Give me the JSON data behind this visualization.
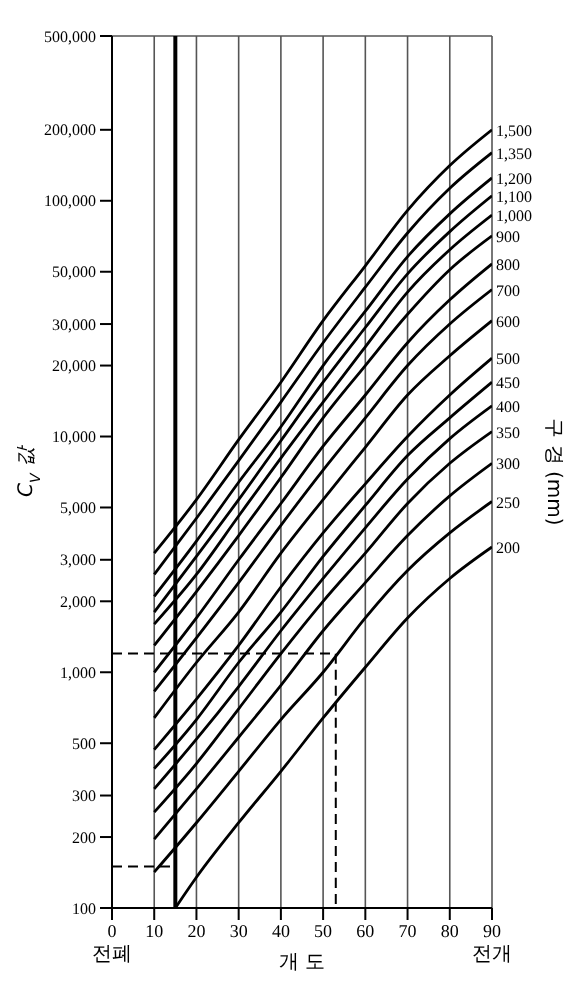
{
  "chart_data": {
    "type": "line",
    "xlabel": "개 도",
    "ylabel": "C$_{V}$ 값",
    "y2label": "구 경 (mm)",
    "annotations": [
      "전폐",
      "전개"
    ],
    "xlim": [
      0,
      90
    ],
    "xticks": [
      0,
      10,
      20,
      30,
      40,
      50,
      60,
      70,
      80,
      90
    ],
    "ylim": [
      100,
      500000
    ],
    "log": "y",
    "yticks": [
      100,
      200,
      300,
      500,
      {
        "value": 1000,
        "label": "1,000"
      },
      {
        "value": 2000,
        "label": "2,000"
      },
      {
        "value": 3000,
        "label": "3,000"
      },
      {
        "value": 5000,
        "label": "5,000"
      },
      {
        "value": 10000,
        "label": "10,000"
      },
      {
        "value": 20000,
        "label": "20,000"
      },
      {
        "value": 30000,
        "label": "30,000"
      },
      {
        "value": 50000,
        "label": "50,000"
      },
      {
        "value": 100000,
        "label": "100,000"
      },
      {
        "value": 200000,
        "label": "200,000"
      },
      {
        "value": 500000,
        "label": "500,000"
      }
    ],
    "grid": true,
    "marker": "none",
    "line_style": "solid",
    "ref_lines": [
      {
        "axis": "x",
        "value": 15,
        "label": null,
        "color": "#000000"
      }
    ],
    "x": [
      10,
      20,
      30,
      40,
      50,
      60,
      70,
      80,
      90
    ],
    "series": [
      {
        "name": "1,500",
        "color": "#000000",
        "values": [
          3200,
          5400,
          9700,
          17000,
          31000,
          53000,
          91000,
          141000,
          200000
        ]
      },
      {
        "name": "1,350",
        "color": "#000000",
        "values": [
          2600,
          4500,
          7900,
          14000,
          25000,
          43000,
          73000,
          113000,
          160000
        ]
      },
      {
        "name": "1,200",
        "color": "#000000",
        "values": [
          2100,
          3600,
          6400,
          11000,
          20000,
          34000,
          58000,
          88000,
          125000
        ]
      },
      {
        "name": "1,100",
        "color": "#000000",
        "values": [
          1800,
          3100,
          5400,
          9600,
          17000,
          29000,
          49000,
          74000,
          105000
        ]
      },
      {
        "name": "1,000",
        "color": "#000000",
        "values": [
          1600,
          2600,
          4600,
          8100,
          14000,
          24000,
          41000,
          62000,
          87000
        ]
      },
      {
        "name": "900",
        "color": "#000000",
        "values": [
          1300,
          2200,
          3800,
          6700,
          12000,
          20000,
          33000,
          51000,
          71000
        ]
      },
      {
        "name": "800",
        "color": "#000000",
        "values": [
          1000,
          1700,
          3000,
          5200,
          9100,
          15000,
          25000,
          38000,
          54000
        ]
      },
      {
        "name": "700",
        "color": "#000000",
        "values": [
          830,
          1400,
          2400,
          4200,
          7200,
          12000,
          20000,
          30000,
          42000
        ]
      },
      {
        "name": "600",
        "color": "#000000",
        "values": [
          640,
          1100,
          1800,
          3200,
          5400,
          9000,
          15000,
          22000,
          31000
        ]
      },
      {
        "name": "500",
        "color": "#000000",
        "values": [
          470,
          770,
          1300,
          2300,
          3900,
          6300,
          10000,
          15000,
          21500
        ]
      },
      {
        "name": "450",
        "color": "#000000",
        "values": [
          390,
          630,
          1100,
          1800,
          3100,
          5100,
          8300,
          12000,
          17000
        ]
      },
      {
        "name": "400",
        "color": "#000000",
        "values": [
          320,
          520,
          870,
          1500,
          2500,
          4100,
          6600,
          9800,
          13500
        ]
      },
      {
        "name": "350",
        "color": "#000000",
        "values": [
          255,
          410,
          700,
          1200,
          2000,
          3200,
          5200,
          7700,
          10500
        ]
      },
      {
        "name": "300",
        "color": "#000000",
        "values": [
          196,
          320,
          530,
          880,
          1500,
          2400,
          3800,
          5600,
          7700
        ]
      },
      {
        "name": "250",
        "color": "#000000",
        "values": [
          142,
          230,
          380,
          630,
          1000,
          1700,
          2700,
          3900,
          5300
        ]
      },
      {
        "name": "200",
        "color": "#000000",
        "x": [
          15,
          20,
          30,
          40,
          50,
          60,
          70,
          80,
          90
        ],
        "values": [
          100,
          135,
          230,
          380,
          640,
          1050,
          1700,
          2500,
          3400
        ]
      },
      {
        "color": "#000000",
        "line_style": "dashed",
        "x": [
          0,
          53,
          53
        ],
        "values": [
          1200,
          1200,
          100
        ]
      },
      {
        "color": "#000000",
        "line_style": "dashed",
        "x": [
          0,
          15,
          15
        ],
        "values": [
          150,
          150,
          100
        ]
      }
    ]
  }
}
